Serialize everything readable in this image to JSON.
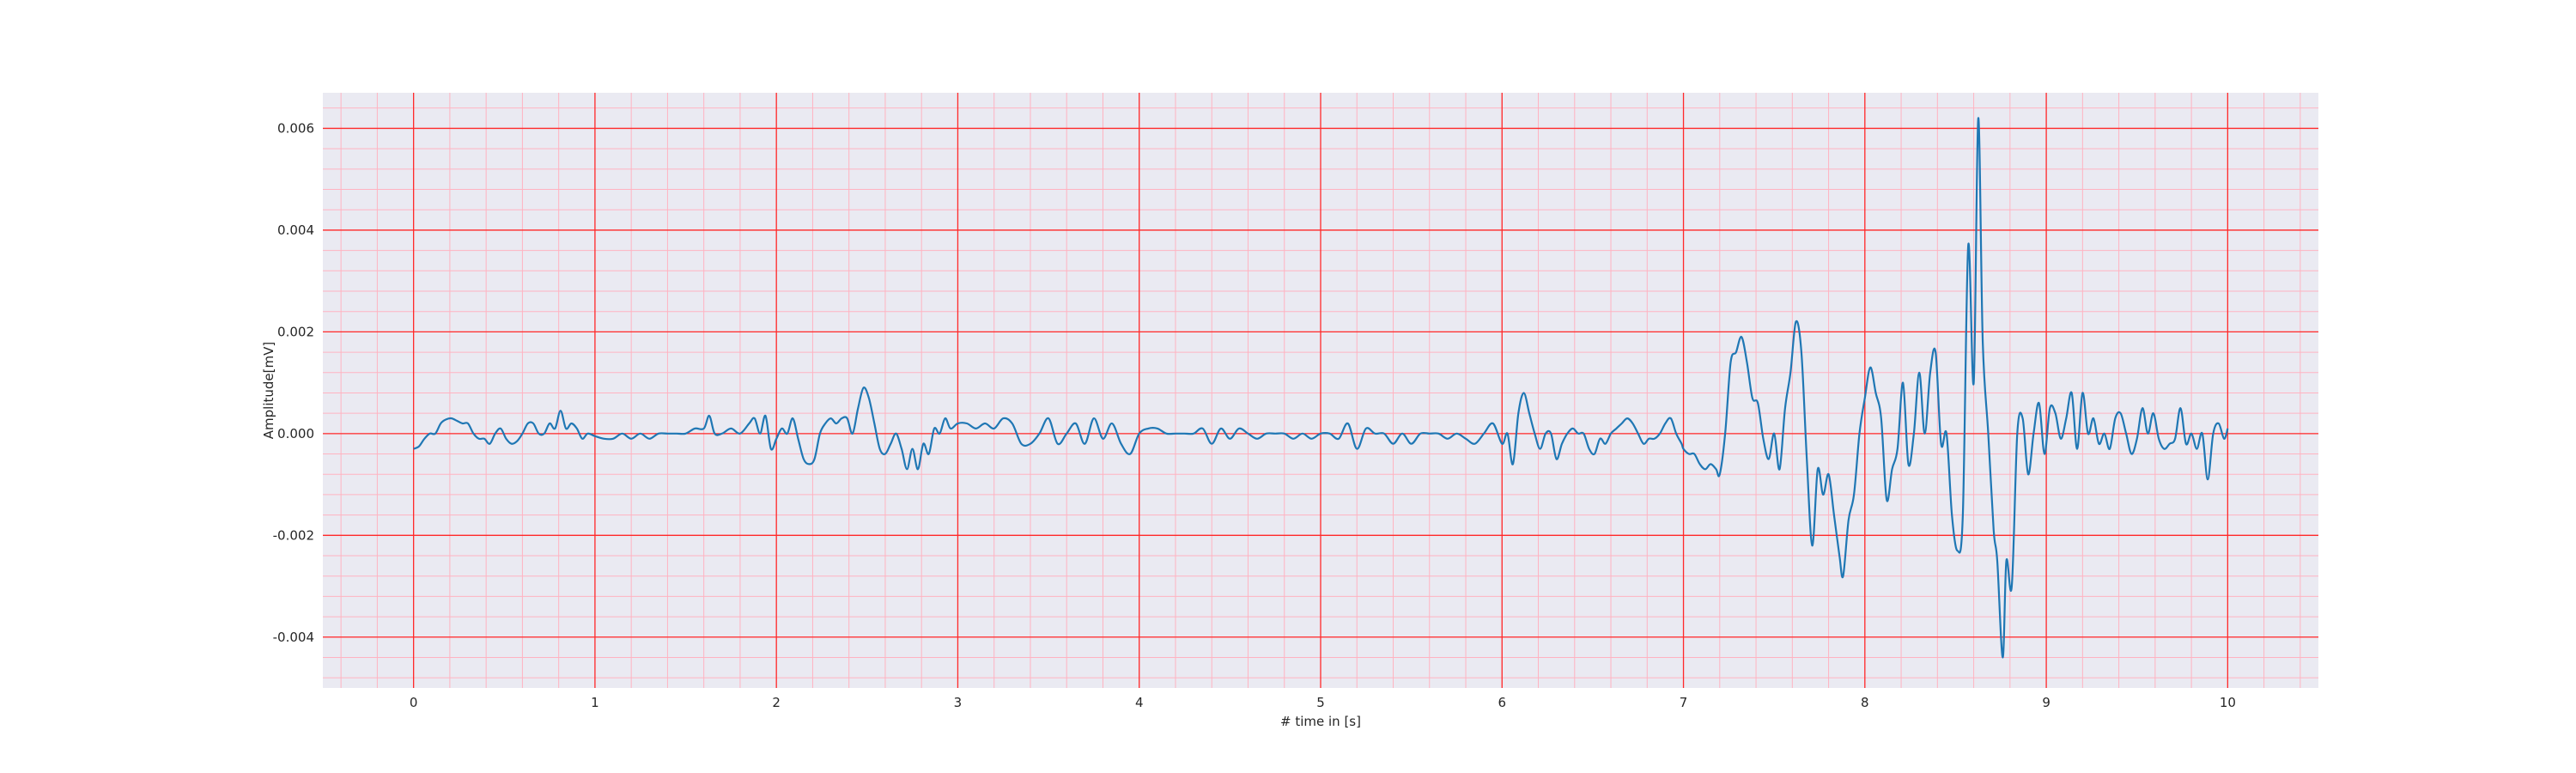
{
  "chart_data": {
    "type": "line",
    "title": "",
    "xlabel": "# time in [s]",
    "ylabel": "Amplitude[mV]",
    "xlim": [
      -0.5,
      10.5
    ],
    "ylim": [
      -0.005,
      0.0067
    ],
    "x_ticks": [
      0,
      1,
      2,
      3,
      4,
      5,
      6,
      7,
      8,
      9,
      10
    ],
    "x_tick_labels": [
      "0",
      "1",
      "2",
      "3",
      "4",
      "5",
      "6",
      "7",
      "8",
      "9",
      "10"
    ],
    "y_ticks": [
      -0.004,
      -0.002,
      0.0,
      0.002,
      0.004,
      0.006
    ],
    "y_tick_labels": [
      "-0.004",
      "-0.002",
      "0.000",
      "0.002",
      "0.004",
      "0.006"
    ],
    "grid": true,
    "minor_grid": true,
    "colors": {
      "line": "#1f77b4",
      "plot_background": "#eaeaf2",
      "major_grid": "#ff2a2a",
      "minor_grid": "#ffb3c1",
      "text": "#262626"
    },
    "series": [
      {
        "name": "",
        "points": [
          [
            0.0,
            -0.0003
          ],
          [
            0.03,
            -0.00025
          ],
          [
            0.06,
            -0.0001
          ],
          [
            0.09,
            0.0
          ],
          [
            0.12,
            0.0
          ],
          [
            0.15,
            0.0002
          ],
          [
            0.18,
            0.00028
          ],
          [
            0.21,
            0.0003
          ],
          [
            0.24,
            0.00025
          ],
          [
            0.27,
            0.0002
          ],
          [
            0.3,
            0.0002
          ],
          [
            0.33,
            0.0
          ],
          [
            0.36,
            -0.0001
          ],
          [
            0.39,
            -0.0001
          ],
          [
            0.42,
            -0.0002
          ],
          [
            0.45,
            0.0
          ],
          [
            0.48,
            0.0001
          ],
          [
            0.51,
            -0.0001
          ],
          [
            0.54,
            -0.0002
          ],
          [
            0.57,
            -0.00015
          ],
          [
            0.6,
            0.0
          ],
          [
            0.63,
            0.0002
          ],
          [
            0.66,
            0.0002
          ],
          [
            0.69,
            0.0
          ],
          [
            0.72,
            0.0
          ],
          [
            0.75,
            0.0002
          ],
          [
            0.78,
            0.0001
          ],
          [
            0.81,
            0.00045
          ],
          [
            0.84,
            0.0001
          ],
          [
            0.87,
            0.0002
          ],
          [
            0.9,
            0.0001
          ],
          [
            0.93,
            -0.0001
          ],
          [
            0.96,
            0.0
          ],
          [
            1.0,
            -5e-05
          ],
          [
            1.05,
            -0.0001
          ],
          [
            1.1,
            -0.0001
          ],
          [
            1.15,
            0.0
          ],
          [
            1.2,
            -0.0001
          ],
          [
            1.25,
            0.0
          ],
          [
            1.3,
            -0.0001
          ],
          [
            1.35,
            0.0
          ],
          [
            1.4,
            0.0
          ],
          [
            1.45,
            0.0
          ],
          [
            1.5,
            0.0
          ],
          [
            1.55,
            0.0001
          ],
          [
            1.6,
            0.0001
          ],
          [
            1.63,
            0.00035
          ],
          [
            1.66,
            0.0
          ],
          [
            1.7,
            0.0
          ],
          [
            1.75,
            0.0001
          ],
          [
            1.8,
            0.0
          ],
          [
            1.85,
            0.0002
          ],
          [
            1.88,
            0.0003
          ],
          [
            1.91,
            0.0
          ],
          [
            1.94,
            0.00035
          ],
          [
            1.97,
            -0.0003
          ],
          [
            2.0,
            -0.0001
          ],
          [
            2.03,
            0.0001
          ],
          [
            2.06,
            0.0
          ],
          [
            2.09,
            0.0003
          ],
          [
            2.12,
            -0.0001
          ],
          [
            2.15,
            -0.0005
          ],
          [
            2.18,
            -0.0006
          ],
          [
            2.21,
            -0.0005
          ],
          [
            2.24,
            0.0
          ],
          [
            2.27,
            0.0002
          ],
          [
            2.3,
            0.0003
          ],
          [
            2.33,
            0.0002
          ],
          [
            2.36,
            0.0003
          ],
          [
            2.39,
            0.0003
          ],
          [
            2.42,
            0.0
          ],
          [
            2.45,
            0.0005
          ],
          [
            2.48,
            0.0009
          ],
          [
            2.51,
            0.0007
          ],
          [
            2.54,
            0.0002
          ],
          [
            2.57,
            -0.0003
          ],
          [
            2.6,
            -0.0004
          ],
          [
            2.63,
            -0.0002
          ],
          [
            2.66,
            0.0
          ],
          [
            2.69,
            -0.0003
          ],
          [
            2.72,
            -0.0007
          ],
          [
            2.75,
            -0.0003
          ],
          [
            2.78,
            -0.0007
          ],
          [
            2.81,
            -0.0002
          ],
          [
            2.84,
            -0.0004
          ],
          [
            2.87,
            0.0001
          ],
          [
            2.9,
            0.0
          ],
          [
            2.93,
            0.0003
          ],
          [
            2.96,
            0.0001
          ],
          [
            3.0,
            0.0002
          ],
          [
            3.05,
            0.0002
          ],
          [
            3.1,
            0.0001
          ],
          [
            3.15,
            0.0002
          ],
          [
            3.2,
            0.0001
          ],
          [
            3.25,
            0.0003
          ],
          [
            3.3,
            0.0002
          ],
          [
            3.35,
            -0.0002
          ],
          [
            3.4,
            -0.0002
          ],
          [
            3.45,
            0.0
          ],
          [
            3.5,
            0.0003
          ],
          [
            3.55,
            -0.0002
          ],
          [
            3.6,
            0.0
          ],
          [
            3.65,
            0.0002
          ],
          [
            3.7,
            -0.0002
          ],
          [
            3.75,
            0.0003
          ],
          [
            3.8,
            -0.0001
          ],
          [
            3.85,
            0.0002
          ],
          [
            3.9,
            -0.0002
          ],
          [
            3.95,
            -0.0004
          ],
          [
            4.0,
            0.0
          ],
          [
            4.05,
            0.0001
          ],
          [
            4.1,
            0.0001
          ],
          [
            4.15,
            0.0
          ],
          [
            4.2,
            0.0
          ],
          [
            4.25,
            0.0
          ],
          [
            4.3,
            0.0
          ],
          [
            4.35,
            0.0001
          ],
          [
            4.4,
            -0.0002
          ],
          [
            4.45,
            0.0001
          ],
          [
            4.5,
            -0.0001
          ],
          [
            4.55,
            0.0001
          ],
          [
            4.6,
            0.0
          ],
          [
            4.65,
            -0.0001
          ],
          [
            4.7,
            0.0
          ],
          [
            4.75,
            0.0
          ],
          [
            4.8,
            0.0
          ],
          [
            4.85,
            -0.0001
          ],
          [
            4.9,
            0.0
          ],
          [
            4.95,
            -0.0001
          ],
          [
            5.0,
            0.0
          ],
          [
            5.05,
            0.0
          ],
          [
            5.1,
            -0.0001
          ],
          [
            5.15,
            0.0002
          ],
          [
            5.2,
            -0.0003
          ],
          [
            5.25,
            0.0001
          ],
          [
            5.3,
            0.0
          ],
          [
            5.35,
            0.0
          ],
          [
            5.4,
            -0.0002
          ],
          [
            5.45,
            0.0
          ],
          [
            5.5,
            -0.0002
          ],
          [
            5.55,
            0.0
          ],
          [
            5.6,
            0.0
          ],
          [
            5.65,
            0.0
          ],
          [
            5.7,
            -0.0001
          ],
          [
            5.75,
            0.0
          ],
          [
            5.8,
            -0.0001
          ],
          [
            5.85,
            -0.0002
          ],
          [
            5.9,
            0.0
          ],
          [
            5.95,
            0.0002
          ],
          [
            6.0,
            -0.0002
          ],
          [
            6.03,
            0.0
          ],
          [
            6.06,
            -0.0006
          ],
          [
            6.09,
            0.0004
          ],
          [
            6.12,
            0.0008
          ],
          [
            6.15,
            0.0004
          ],
          [
            6.18,
            0.0
          ],
          [
            6.21,
            -0.0003
          ],
          [
            6.24,
            0.0
          ],
          [
            6.27,
            0.0
          ],
          [
            6.3,
            -0.0005
          ],
          [
            6.33,
            -0.0002
          ],
          [
            6.36,
            0.0
          ],
          [
            6.39,
            0.0001
          ],
          [
            6.42,
            0.0
          ],
          [
            6.45,
            0.0
          ],
          [
            6.48,
            -0.0003
          ],
          [
            6.51,
            -0.0004
          ],
          [
            6.54,
            -0.0001
          ],
          [
            6.57,
            -0.0002
          ],
          [
            6.6,
            0.0
          ],
          [
            6.63,
            0.0001
          ],
          [
            6.66,
            0.0002
          ],
          [
            6.69,
            0.0003
          ],
          [
            6.72,
            0.0002
          ],
          [
            6.75,
            0.0
          ],
          [
            6.78,
            -0.0002
          ],
          [
            6.81,
            -0.0001
          ],
          [
            6.84,
            -0.0001
          ],
          [
            6.87,
            0.0
          ],
          [
            6.9,
            0.0002
          ],
          [
            6.93,
            0.0003
          ],
          [
            6.96,
            0.0
          ],
          [
            6.99,
            -0.0002
          ],
          [
            7.0,
            -0.0003
          ],
          [
            7.03,
            -0.0004
          ],
          [
            7.06,
            -0.0004
          ],
          [
            7.09,
            -0.0006
          ],
          [
            7.12,
            -0.0007
          ],
          [
            7.15,
            -0.0006
          ],
          [
            7.18,
            -0.0007
          ],
          [
            7.2,
            -0.0008
          ],
          [
            7.23,
            0.0
          ],
          [
            7.26,
            0.0014
          ],
          [
            7.29,
            0.0016
          ],
          [
            7.32,
            0.0019
          ],
          [
            7.35,
            0.0014
          ],
          [
            7.38,
            0.0007
          ],
          [
            7.41,
            0.0006
          ],
          [
            7.44,
            -0.0001
          ],
          [
            7.47,
            -0.0005
          ],
          [
            7.5,
            0.0
          ],
          [
            7.53,
            -0.0007
          ],
          [
            7.56,
            0.0005
          ],
          [
            7.59,
            0.0012
          ],
          [
            7.62,
            0.0022
          ],
          [
            7.65,
            0.0016
          ],
          [
            7.68,
            -0.0005
          ],
          [
            7.71,
            -0.0022
          ],
          [
            7.74,
            -0.0007
          ],
          [
            7.77,
            -0.0012
          ],
          [
            7.8,
            -0.0008
          ],
          [
            7.83,
            -0.0016
          ],
          [
            7.86,
            -0.0024
          ],
          [
            7.88,
            -0.0028
          ],
          [
            7.91,
            -0.0017
          ],
          [
            7.94,
            -0.0012
          ],
          [
            7.97,
            0.0
          ],
          [
            8.0,
            0.0007
          ],
          [
            8.03,
            0.0013
          ],
          [
            8.06,
            0.0008
          ],
          [
            8.09,
            0.0003
          ],
          [
            8.12,
            -0.0013
          ],
          [
            8.15,
            -0.0007
          ],
          [
            8.18,
            -0.0003
          ],
          [
            8.21,
            0.001
          ],
          [
            8.24,
            -0.0006
          ],
          [
            8.27,
            0.0
          ],
          [
            8.3,
            0.0012
          ],
          [
            8.33,
            0.0
          ],
          [
            8.36,
            0.0012
          ],
          [
            8.39,
            0.0016
          ],
          [
            8.42,
            -0.0002
          ],
          [
            8.45,
            0.0
          ],
          [
            8.48,
            -0.0016
          ],
          [
            8.51,
            -0.0023
          ],
          [
            8.54,
            -0.0016
          ],
          [
            8.57,
            0.0037
          ],
          [
            8.6,
            0.001
          ],
          [
            8.625,
            0.0062
          ],
          [
            8.65,
            0.0018
          ],
          [
            8.68,
            0.0
          ],
          [
            8.71,
            -0.0019
          ],
          [
            8.73,
            -0.0025
          ],
          [
            8.76,
            -0.0044
          ],
          [
            8.78,
            -0.0025
          ],
          [
            8.81,
            -0.003
          ],
          [
            8.84,
            0.0
          ],
          [
            8.87,
            0.0003
          ],
          [
            8.9,
            -0.0008
          ],
          [
            8.93,
            0.0
          ],
          [
            8.96,
            0.0006
          ],
          [
            8.99,
            -0.0004
          ],
          [
            9.02,
            0.0005
          ],
          [
            9.05,
            0.0004
          ],
          [
            9.08,
            -0.0001
          ],
          [
            9.11,
            0.0003
          ],
          [
            9.14,
            0.0008
          ],
          [
            9.17,
            -0.0003
          ],
          [
            9.2,
            0.0008
          ],
          [
            9.23,
            0.0
          ],
          [
            9.26,
            0.0003
          ],
          [
            9.29,
            -0.0002
          ],
          [
            9.32,
            0.0
          ],
          [
            9.35,
            -0.0003
          ],
          [
            9.38,
            0.0003
          ],
          [
            9.41,
            0.0004
          ],
          [
            9.44,
            0.0
          ],
          [
            9.47,
            -0.0004
          ],
          [
            9.5,
            -0.0001
          ],
          [
            9.53,
            0.0005
          ],
          [
            9.56,
            0.0
          ],
          [
            9.59,
            0.0004
          ],
          [
            9.62,
            -0.0001
          ],
          [
            9.65,
            -0.0003
          ],
          [
            9.68,
            -0.0002
          ],
          [
            9.71,
            -0.0001
          ],
          [
            9.74,
            0.0005
          ],
          [
            9.77,
            -0.0002
          ],
          [
            9.8,
            0.0
          ],
          [
            9.83,
            -0.0003
          ],
          [
            9.86,
            0.0
          ],
          [
            9.89,
            -0.0009
          ],
          [
            9.92,
            0.0
          ],
          [
            9.95,
            0.0002
          ],
          [
            9.98,
            -0.0001
          ],
          [
            10.0,
            0.0001
          ]
        ]
      }
    ]
  }
}
